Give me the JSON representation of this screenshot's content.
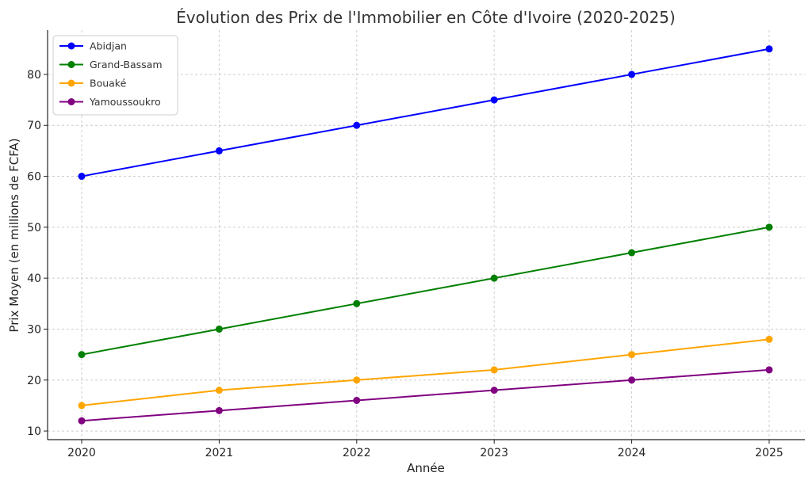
{
  "chart_data": {
    "type": "line",
    "title": "Évolution des Prix de l'Immobilier en Côte d'Ivoire (2020-2025)",
    "xlabel": "Année",
    "ylabel": "Prix Moyen (en millions de FCFA)",
    "x": [
      "2020",
      "2021",
      "2022",
      "2023",
      "2024",
      "2025"
    ],
    "yticks": [
      10,
      20,
      30,
      40,
      50,
      60,
      70,
      80
    ],
    "ylim": [
      8.3,
      88.7
    ],
    "grid": true,
    "legend_position": "top-left",
    "series": [
      {
        "name": "Abidjan",
        "color": "#0000ff",
        "values": [
          60,
          65,
          70,
          75,
          80,
          85
        ]
      },
      {
        "name": "Grand-Bassam",
        "color": "#008000",
        "values": [
          25,
          30,
          35,
          40,
          45,
          50
        ]
      },
      {
        "name": "Bouaké",
        "color": "#ffa500",
        "values": [
          15,
          18,
          20,
          22,
          25,
          28
        ]
      },
      {
        "name": "Yamoussoukro",
        "color": "#800080",
        "values": [
          12,
          14,
          16,
          18,
          20,
          22
        ]
      }
    ]
  }
}
